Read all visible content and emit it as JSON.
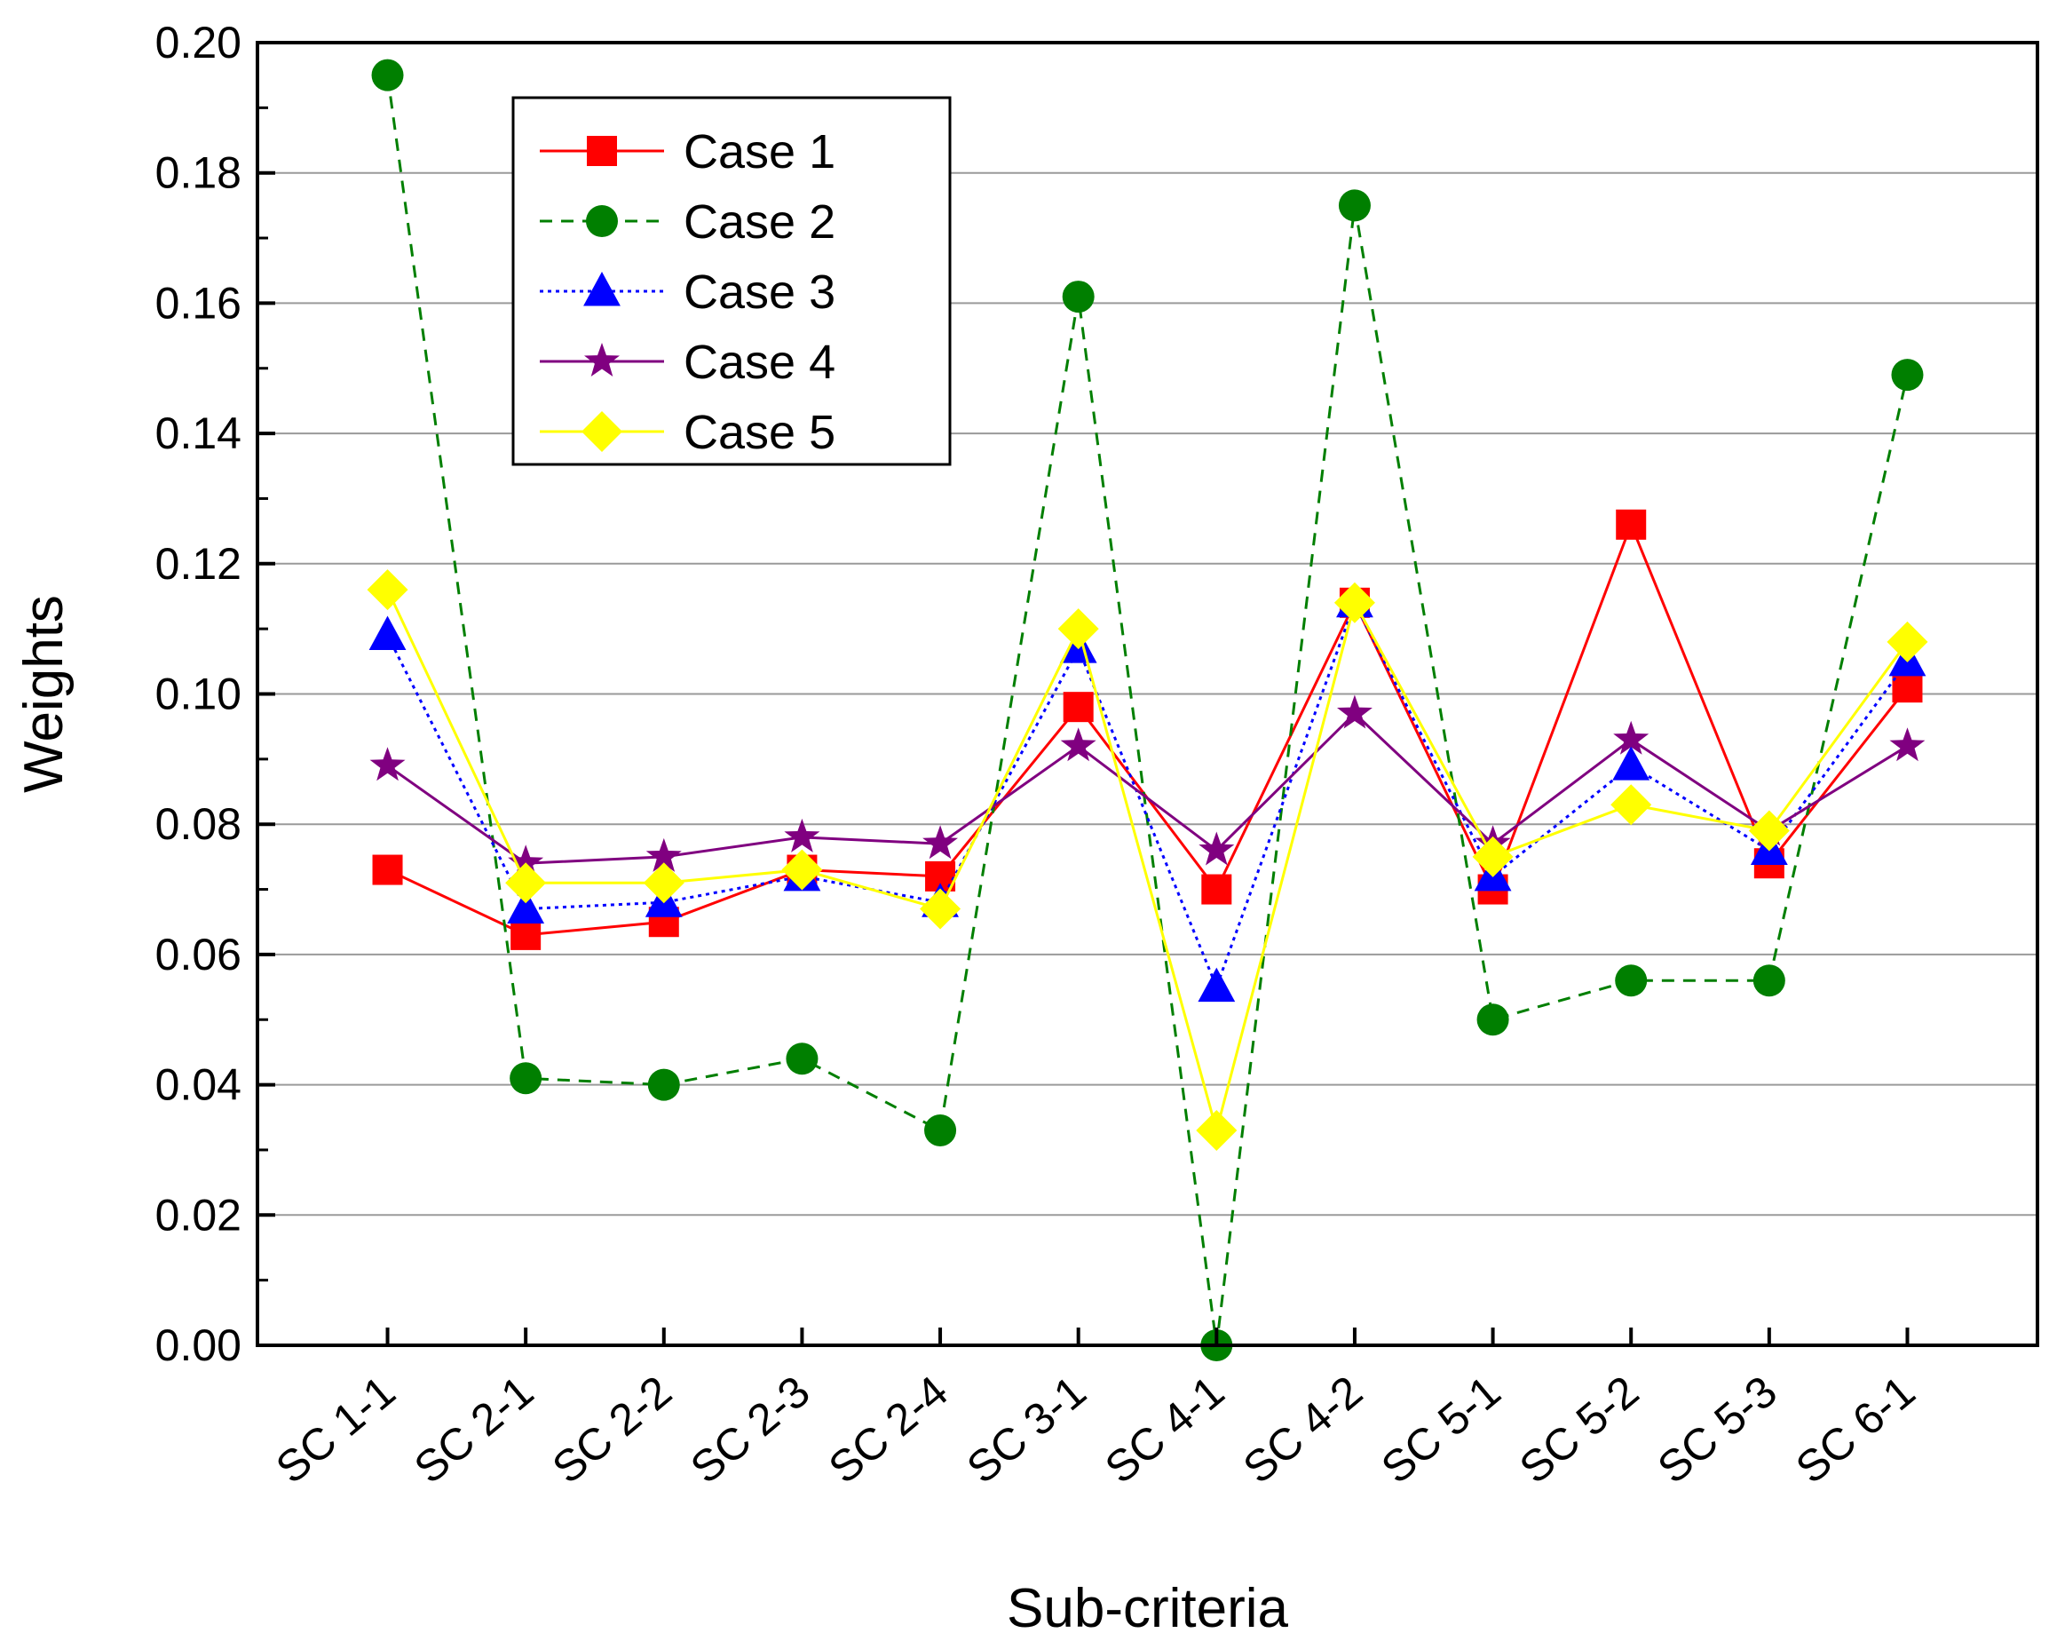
{
  "chart_data": {
    "type": "line",
    "title": "",
    "xlabel": "Sub-criteria",
    "ylabel": "Weights",
    "ylim": [
      0,
      0.2
    ],
    "y_ticks": [
      "0.00",
      "0.02",
      "0.04",
      "0.06",
      "0.08",
      "0.10",
      "0.12",
      "0.14",
      "0.16",
      "0.18",
      "0.20"
    ],
    "grid": "horizontal",
    "legend_position": "top-left",
    "categories": [
      "SC 1-1",
      "SC 2-1",
      "SC 2-2",
      "SC 2-3",
      "SC 2-4",
      "SC 3-1",
      "SC 4-1",
      "SC 4-2",
      "SC 5-1",
      "SC 5-2",
      "SC 5-3",
      "SC 6-1"
    ],
    "series": [
      {
        "name": "Case 1",
        "color": "#ff0000",
        "marker": "square",
        "line_style": "solid",
        "values": [
          0.073,
          0.063,
          0.065,
          0.073,
          0.072,
          0.098,
          0.07,
          0.114,
          0.07,
          0.126,
          0.074,
          0.101
        ]
      },
      {
        "name": "Case 2",
        "color": "#007f00",
        "marker": "circle",
        "line_style": "dashed",
        "values": [
          0.195,
          0.041,
          0.04,
          0.044,
          0.033,
          0.161,
          0.0,
          0.175,
          0.05,
          0.056,
          0.056,
          0.149
        ]
      },
      {
        "name": "Case 3",
        "color": "#0000ff",
        "marker": "triangle",
        "line_style": "dotted",
        "values": [
          0.109,
          0.067,
          0.068,
          0.072,
          0.068,
          0.107,
          0.055,
          0.114,
          0.072,
          0.089,
          0.076,
          0.105
        ]
      },
      {
        "name": "Case 4",
        "color": "#800080",
        "marker": "star",
        "line_style": "solid",
        "values": [
          0.089,
          0.074,
          0.075,
          0.078,
          0.077,
          0.092,
          0.076,
          0.097,
          0.077,
          0.093,
          0.079,
          0.092
        ]
      },
      {
        "name": "Case 5",
        "color": "#ffff00",
        "marker": "diamond",
        "line_style": "solid",
        "values": [
          0.116,
          0.071,
          0.071,
          0.073,
          0.067,
          0.11,
          0.033,
          0.114,
          0.075,
          0.083,
          0.079,
          0.108
        ]
      }
    ]
  }
}
